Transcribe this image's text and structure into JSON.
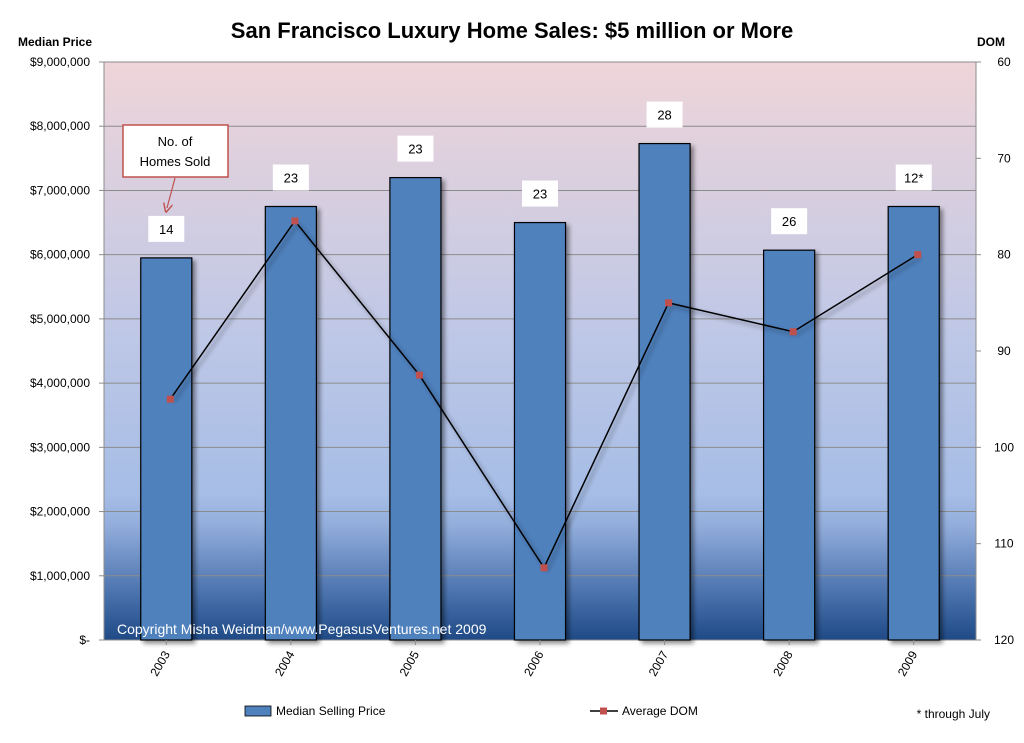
{
  "chart_data": {
    "type": "bar",
    "title": "San Francisco Luxury Home Sales:  $5 million or More",
    "categories": [
      "2003",
      "2004",
      "2005",
      "2006",
      "2007",
      "2008",
      "2009"
    ],
    "series": [
      {
        "name": "Median Selling Price",
        "type": "bar",
        "axis": "left",
        "values": [
          5950000,
          6750000,
          7200000,
          6500000,
          7730000,
          6070000,
          6750000
        ]
      },
      {
        "name": "Average DOM",
        "type": "line",
        "axis": "right",
        "values": [
          95,
          76.5,
          92.5,
          112.5,
          85,
          88,
          80
        ]
      }
    ],
    "bar_labels": [
      "14",
      "23",
      "23",
      "23",
      "28",
      "26",
      "12*"
    ],
    "left_axis": {
      "title": "Median Price",
      "range": [
        0,
        9000000
      ],
      "ticks": [
        0,
        1000000,
        2000000,
        3000000,
        4000000,
        5000000,
        6000000,
        7000000,
        8000000,
        9000000
      ],
      "tick_labels": [
        "$-",
        "$1,000,000",
        "$2,000,000",
        "$3,000,000",
        "$4,000,000",
        "$5,000,000",
        "$6,000,000",
        "$7,000,000",
        "$8,000,000",
        "$9,000,000"
      ]
    },
    "right_axis": {
      "title": "DOM",
      "range": [
        60,
        120
      ],
      "reversed": true,
      "ticks": [
        60,
        70,
        80,
        90,
        100,
        110,
        120
      ],
      "tick_labels": [
        "60",
        "70",
        "80",
        "90",
        "100",
        "110",
        "120"
      ]
    },
    "grid": true,
    "legend": {
      "placement": "bottom",
      "entries": [
        "Median Selling Price",
        "Average DOM"
      ]
    },
    "annotation": {
      "lines": [
        "No. of",
        "Homes Sold"
      ],
      "target_category": "2003"
    },
    "footnote": "* through July",
    "copyright": "Copyright Misha Weidman/www.PegasusVentures.net 2009",
    "colors": {
      "bar": "#4f81bd",
      "bar_edge": "#000000",
      "line": "#000000",
      "marker": "#c0504d",
      "annotation_border": "#c0504d",
      "plot_top": "#efd5d9",
      "plot_mid": "#a6bde6",
      "plot_bottom": "#1f4a86"
    }
  }
}
